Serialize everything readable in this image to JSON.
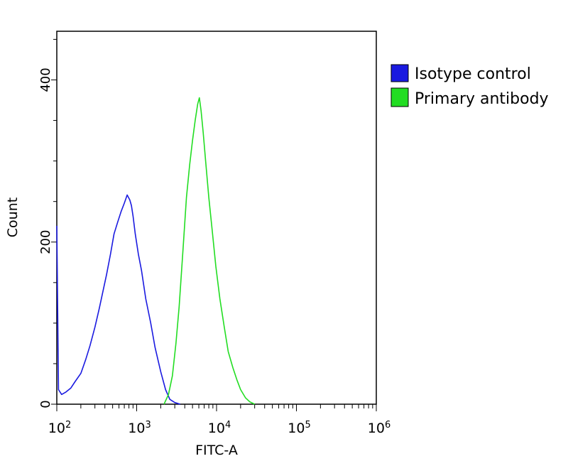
{
  "chart_data": {
    "type": "line",
    "xlabel": "FITC-A",
    "ylabel": "Count",
    "xscale": "log",
    "xlim": [
      100,
      1000000
    ],
    "ylim": [
      0,
      460
    ],
    "x_ticks": [
      {
        "value": 100,
        "base": "10",
        "exp": "2"
      },
      {
        "value": 1000,
        "base": "10",
        "exp": "3"
      },
      {
        "value": 10000,
        "base": "10",
        "exp": "4"
      },
      {
        "value": 100000,
        "base": "10",
        "exp": "5"
      },
      {
        "value": 1000000,
        "base": "10",
        "exp": "6"
      }
    ],
    "y_ticks": [
      {
        "value": 0,
        "label": "0"
      },
      {
        "value": 200,
        "label": "200"
      },
      {
        "value": 400,
        "label": "400"
      }
    ],
    "legend_position": "outside-right",
    "series": [
      {
        "name": "Isotype control",
        "color": "#1a1ae0",
        "x": [
          100,
          105,
          115,
          130,
          150,
          170,
          200,
          230,
          260,
          300,
          340,
          380,
          420,
          470,
          520,
          580,
          640,
          700,
          760,
          820,
          860,
          900,
          960,
          1050,
          1150,
          1300,
          1500,
          1700,
          2000,
          2300,
          2600,
          3000,
          3500
        ],
        "values": [
          220,
          18,
          12,
          15,
          20,
          28,
          38,
          55,
          72,
          95,
          118,
          140,
          160,
          185,
          210,
          225,
          238,
          248,
          258,
          252,
          245,
          232,
          210,
          185,
          165,
          130,
          100,
          70,
          40,
          18,
          6,
          2,
          0
        ]
      },
      {
        "name": "Primary antibody",
        "color": "#22dd22",
        "x": [
          2200,
          2500,
          2800,
          3100,
          3400,
          3800,
          4200,
          4600,
          5000,
          5400,
          5800,
          6100,
          6400,
          6800,
          7300,
          8000,
          8800,
          9800,
          11000,
          12500,
          14000,
          16000,
          18000,
          20000,
          23000,
          26000,
          30000
        ],
        "values": [
          0,
          12,
          35,
          75,
          120,
          190,
          255,
          295,
          325,
          350,
          370,
          378,
          362,
          335,
          300,
          255,
          215,
          170,
          130,
          95,
          65,
          45,
          30,
          18,
          8,
          3,
          0
        ]
      }
    ]
  }
}
